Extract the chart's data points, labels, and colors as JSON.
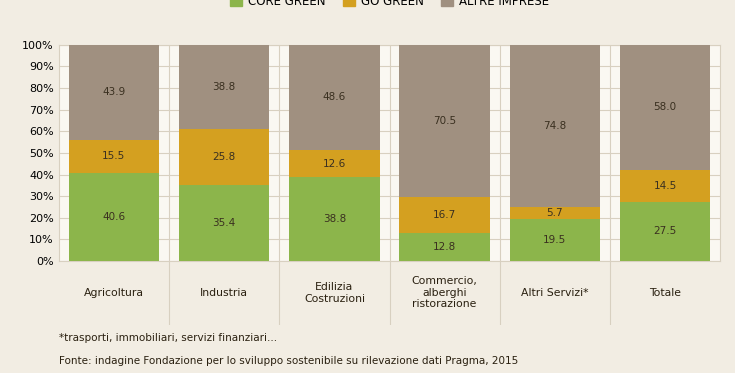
{
  "categories": [
    "Agricoltura",
    "Industria",
    "Edilizia\nCostruzioni",
    "Commercio,\nalberghi\nristorazione",
    "Altri Servizi*",
    "Totale"
  ],
  "core_green": [
    40.6,
    35.4,
    38.8,
    12.8,
    19.5,
    27.5
  ],
  "go_green": [
    15.5,
    25.8,
    12.6,
    16.7,
    5.7,
    14.5
  ],
  "altre_imprese": [
    43.9,
    38.8,
    48.6,
    70.5,
    74.8,
    58.0
  ],
  "color_core_green": "#8cb54b",
  "color_go_green": "#d4a020",
  "color_altre_imprese": "#a09080",
  "legend_labels": [
    "CORE GREEN",
    "GO GREEN",
    "ALTRE IMPRESE"
  ],
  "footnote1": "*trasporti, immobiliari, servizi finanziari...",
  "footnote2": "Fonte: indagine Fondazione per lo sviluppo sostenibile su rilevazione dati Pragma, 2015",
  "background_color": "#f2ede3",
  "plot_bg_color": "#faf8f2",
  "bar_width": 0.82,
  "grid_color": "#d8d0c0",
  "text_color": "#3a3020",
  "label_fontsize": 7.5,
  "tick_fontsize": 8.0,
  "legend_fontsize": 8.5
}
